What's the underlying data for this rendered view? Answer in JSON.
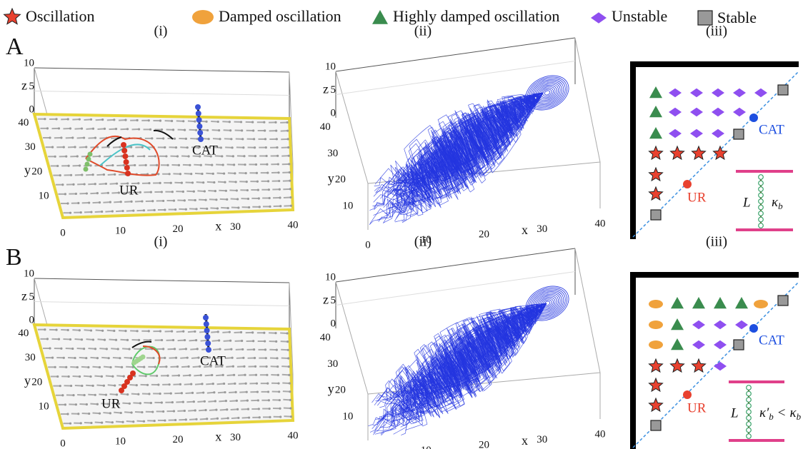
{
  "legend": [
    "Oscillation",
    "Damped oscillation",
    "Highly damped oscillation",
    "Unstable",
    "Stable"
  ],
  "axes": {
    "x_label": "x",
    "y_label": "y",
    "z_label": "z",
    "x_ticks": [
      "0",
      "10",
      "20",
      "30",
      "40"
    ],
    "y_ticks": [
      "10",
      "20",
      "30",
      "40"
    ],
    "z_ticks": [
      "0",
      "5",
      "10"
    ]
  },
  "panels": [
    {
      "label": "A",
      "titles": [
        "(i)",
        "(ii)",
        "(iii)"
      ],
      "ur": "UR",
      "cat": "CAT",
      "inset": {
        "length": "L",
        "symbol": "κ",
        "subscript": "b"
      }
    },
    {
      "label": "B",
      "titles": [
        "(i)",
        "(ii)",
        "(iii)"
      ],
      "ur": "UR",
      "cat": "CAT",
      "inset": {
        "length": "L",
        "symbol": "κ′",
        "subscript": "b",
        "relation": "<",
        "rhs_symbol": "κ",
        "rhs_subscript": "b"
      }
    }
  ]
}
